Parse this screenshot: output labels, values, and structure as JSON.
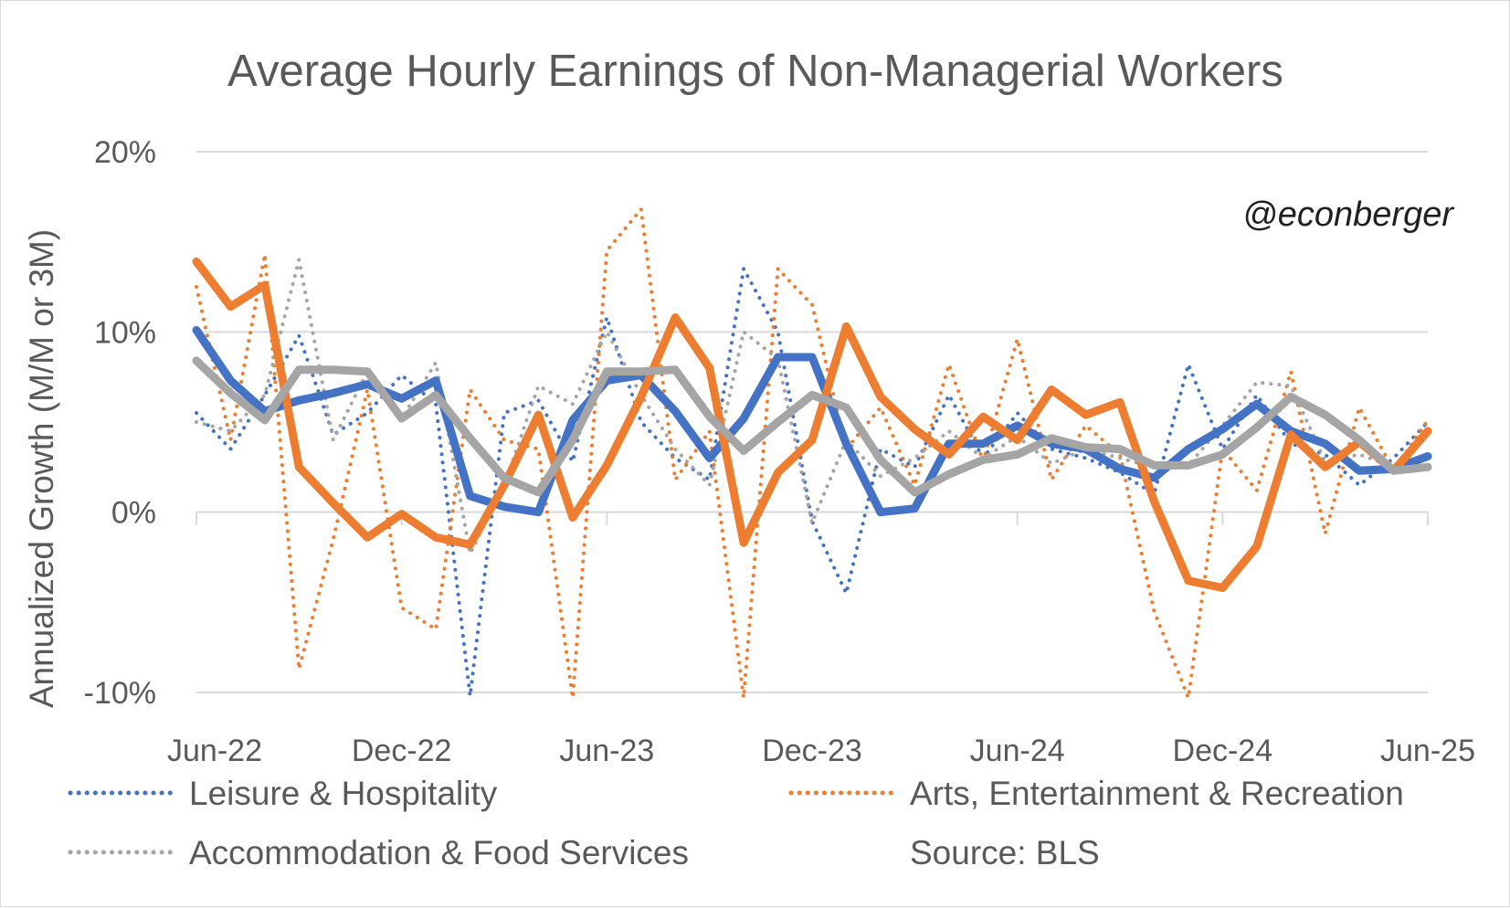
{
  "chart_data": {
    "type": "line",
    "title": "Average Hourly Earnings of Non-Managerial Workers",
    "watermark": "@econberger",
    "ylabel": "Annualized Growth (M/M or 3M)",
    "xlabel": "",
    "ylim": [
      -10,
      20
    ],
    "y_ticks": [
      20,
      10,
      0,
      -10
    ],
    "y_tick_labels": [
      "20%",
      "10%",
      "0%",
      "-10%"
    ],
    "x_tick_labels": [
      "Jun-22",
      "Dec-22",
      "Jun-23",
      "Dec-23",
      "Jun-24",
      "Dec-24",
      "Jun-25"
    ],
    "x_tick_index": [
      0,
      6,
      12,
      18,
      24,
      30,
      36
    ],
    "x": [
      "Jun-22",
      "Jul-22",
      "Aug-22",
      "Sep-22",
      "Oct-22",
      "Nov-22",
      "Dec-22",
      "Jan-23",
      "Feb-23",
      "Mar-23",
      "Apr-23",
      "May-23",
      "Jun-23",
      "Jul-23",
      "Aug-23",
      "Sep-23",
      "Oct-23",
      "Nov-23",
      "Dec-23",
      "Jan-24",
      "Feb-24",
      "Mar-24",
      "Apr-24",
      "May-24",
      "Jun-24",
      "Jul-24",
      "Aug-24",
      "Sep-24",
      "Oct-24",
      "Nov-24",
      "Dec-24",
      "Jan-25",
      "Feb-25",
      "Mar-25",
      "Apr-25",
      "May-25",
      "Jun-25"
    ],
    "grid": true,
    "series": [
      {
        "name": "Leisure & Hospitality",
        "style": "dotted",
        "color": "#4472c4",
        "values": [
          5.5,
          3.5,
          6.5,
          9.8,
          4.3,
          5.5,
          7.6,
          6.0,
          -10.2,
          5.5,
          6.2,
          2.8,
          10.8,
          5.0,
          3.0,
          1.8,
          13.5,
          10.0,
          -0.5,
          -4.5,
          3.5,
          2.5,
          6.5,
          3.0,
          5.5,
          3.5,
          3.0,
          2.2,
          1.0,
          8.2,
          3.5,
          6.5,
          3.8,
          3.2,
          1.5,
          3.0,
          5.0
        ]
      },
      {
        "name": "Leisure & Hospitality 3M",
        "style": "solid",
        "color": "#4472c4",
        "values": [
          10.1,
          7.3,
          5.6,
          6.2,
          6.6,
          7.1,
          6.3,
          7.3,
          0.9,
          0.3,
          0.0,
          5.1,
          7.3,
          7.6,
          5.6,
          3.0,
          5.2,
          8.6,
          8.6,
          3.8,
          0.0,
          0.2,
          3.8,
          3.8,
          4.8,
          3.8,
          3.5,
          2.4,
          1.9,
          3.5,
          4.6,
          6.0,
          4.5,
          3.8,
          2.3,
          2.4,
          3.1
        ]
      },
      {
        "name": "Arts, Entertainment & Recreation",
        "style": "dotted",
        "color": "#ed7d31",
        "values": [
          12.5,
          4.0,
          14.3,
          -8.7,
          -1.5,
          6.8,
          -5.3,
          -6.5,
          6.8,
          4.0,
          3.5,
          -10.5,
          14.5,
          16.8,
          1.8,
          4.5,
          -10.5,
          13.5,
          11.5,
          3.5,
          5.8,
          1.5,
          8.2,
          2.8,
          9.6,
          1.8,
          4.8,
          3.2,
          -5.5,
          -10.3,
          3.5,
          1.2,
          7.8,
          -1.2,
          5.8,
          2.3,
          5.1
        ]
      },
      {
        "name": "Arts, Entertainment & Recreation 3M",
        "style": "solid",
        "color": "#ed7d31",
        "values": [
          13.9,
          11.4,
          12.6,
          2.5,
          0.5,
          -1.4,
          -0.1,
          -1.4,
          -1.8,
          1.5,
          5.4,
          -0.3,
          2.6,
          6.4,
          10.8,
          8.0,
          -1.7,
          2.2,
          4.0,
          10.3,
          6.4,
          4.6,
          3.2,
          5.3,
          4.0,
          6.8,
          5.4,
          6.1,
          0.6,
          -3.8,
          -4.2,
          -1.9,
          4.3,
          2.5,
          3.9,
          2.3,
          4.5
        ]
      },
      {
        "name": "Accommodation & Food Services",
        "style": "dotted",
        "color": "#a5a5a5",
        "values": [
          5.0,
          4.5,
          6.5,
          14.0,
          4.0,
          7.8,
          5.2,
          8.3,
          -2.3,
          1.5,
          7.0,
          6.0,
          10.0,
          6.5,
          3.5,
          1.5,
          10.0,
          8.5,
          -0.6,
          4.0,
          2.0,
          3.0,
          4.5,
          3.0,
          4.2,
          2.7,
          3.5,
          3.0,
          2.5,
          2.6,
          4.8,
          7.2,
          7.0,
          2.8,
          3.2,
          2.5,
          2.5
        ]
      },
      {
        "name": "Accommodation & Food Services 3M",
        "style": "solid",
        "color": "#a5a5a5",
        "values": [
          8.4,
          6.6,
          5.1,
          7.9,
          7.9,
          7.8,
          5.2,
          6.5,
          4.1,
          1.9,
          1.1,
          4.0,
          7.8,
          7.8,
          7.9,
          5.3,
          3.4,
          5.0,
          6.5,
          5.8,
          2.9,
          1.1,
          2.1,
          2.9,
          3.2,
          4.1,
          3.6,
          3.5,
          2.6,
          2.6,
          3.2,
          4.7,
          6.4,
          5.4,
          4.0,
          2.3,
          2.5
        ]
      }
    ],
    "legend": {
      "position": "bottom",
      "entries": [
        {
          "label": "Leisure & Hospitality",
          "color": "#4472c4"
        },
        {
          "label": "Arts, Entertainment & Recreation",
          "color": "#ed7d31"
        },
        {
          "label": "Accommodation & Food Services",
          "color": "#a5a5a5"
        }
      ]
    },
    "source": "Source: BLS"
  }
}
